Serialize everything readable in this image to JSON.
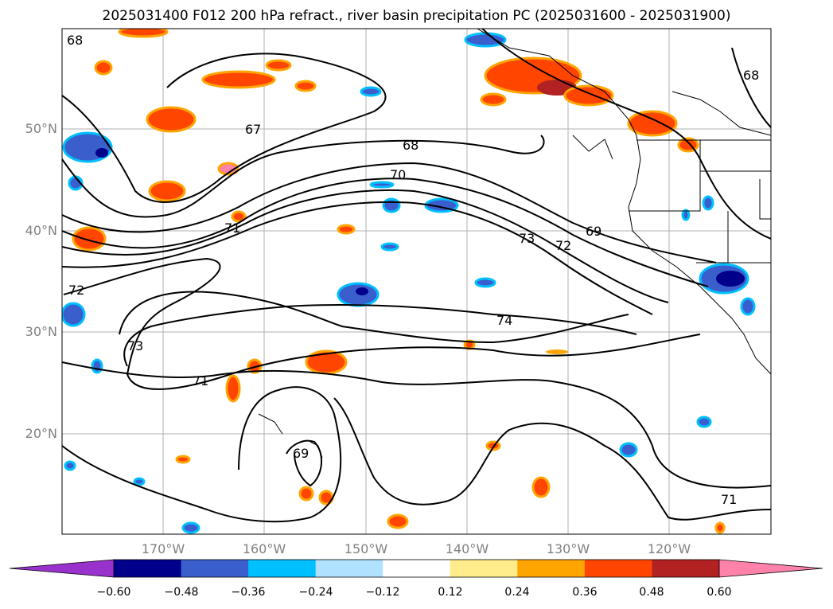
{
  "title": "2025031400 F012 200 hPa refract., river basin precipitation PC (2025031600 - 2025031900)",
  "map": {
    "lat_labels": [
      "50°N",
      "40°N",
      "30°N",
      "20°N"
    ],
    "lon_labels": [
      "170°W",
      "160°W",
      "150°W",
      "140°W",
      "130°W",
      "120°W"
    ],
    "contour_labels": [
      "68",
      "67",
      "68",
      "70",
      "71",
      "69",
      "73",
      "72",
      "72",
      "73",
      "74",
      "71",
      "69",
      "71",
      "68"
    ]
  },
  "colorbar": {
    "ticks": [
      "−0.60",
      "−0.48",
      "−0.36",
      "−0.24",
      "−0.12",
      "0.12",
      "0.24",
      "0.36",
      "0.48",
      "0.60"
    ],
    "colors": [
      "#9932cc",
      "#00008b",
      "#3a5fcd",
      "#00bfff",
      "#b0e2ff",
      "#ffffff",
      "#ffec8b",
      "#ffa500",
      "#ff4500",
      "#b22222",
      "#ff82ab",
      "#ff82ab"
    ]
  }
}
